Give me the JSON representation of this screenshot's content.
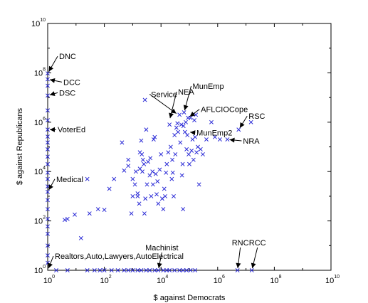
{
  "chart_data": {
    "type": "scatter",
    "title": "",
    "xlabel": "$ against Democrats",
    "ylabel": "$ against Republicans",
    "xscale": "log",
    "yscale": "log",
    "xlim": [
      1,
      10000000000
    ],
    "ylim": [
      1,
      10000000000
    ],
    "grid": false,
    "marker": "x",
    "marker_color": "#2b2bd6",
    "x_tick_labels": [
      {
        "base": "10",
        "exp": "0"
      },
      {
        "base": "10",
        "exp": "2"
      },
      {
        "base": "10",
        "exp": "4"
      },
      {
        "base": "10",
        "exp": "6"
      },
      {
        "base": "10",
        "exp": "8"
      },
      {
        "base": "10",
        "exp": "10"
      }
    ],
    "y_tick_labels": [
      {
        "base": "10",
        "exp": "0"
      },
      {
        "base": "10",
        "exp": "2"
      },
      {
        "base": "10",
        "exp": "4"
      },
      {
        "base": "10",
        "exp": "6"
      },
      {
        "base": "10",
        "exp": "8"
      },
      {
        "base": "10",
        "exp": "10"
      }
    ],
    "points": [
      [
        1,
        95000000
      ],
      [
        1,
        55000000
      ],
      [
        1,
        30000000
      ],
      [
        1,
        12000000
      ],
      [
        1,
        3000000
      ],
      [
        1,
        1200000
      ],
      [
        1,
        500000
      ],
      [
        1,
        260000
      ],
      [
        1,
        150000
      ],
      [
        1,
        80000
      ],
      [
        1,
        40000
      ],
      [
        1,
        20000
      ],
      [
        1,
        9000
      ],
      [
        1,
        5000
      ],
      [
        1,
        2500
      ],
      [
        1,
        1500
      ],
      [
        1,
        700
      ],
      [
        1,
        300
      ],
      [
        1,
        120
      ],
      [
        1,
        60
      ],
      [
        1,
        30
      ],
      [
        1,
        10
      ],
      [
        1,
        4
      ],
      [
        1,
        2
      ],
      [
        2,
        1
      ],
      [
        5,
        1
      ],
      [
        25,
        1
      ],
      [
        45,
        1
      ],
      [
        70,
        1
      ],
      [
        100,
        1
      ],
      [
        180,
        1
      ],
      [
        300,
        1
      ],
      [
        500,
        1
      ],
      [
        700,
        1
      ],
      [
        1000,
        1
      ],
      [
        1500,
        1
      ],
      [
        2000,
        1
      ],
      [
        3000,
        1
      ],
      [
        4000,
        1
      ],
      [
        6000,
        1
      ],
      [
        8000,
        1
      ],
      [
        12000,
        1
      ],
      [
        16000,
        1
      ],
      [
        20000,
        1
      ],
      [
        30000,
        1
      ],
      [
        45000,
        1
      ],
      [
        60000,
        1
      ],
      [
        80000,
        1
      ],
      [
        110000,
        1
      ],
      [
        160000,
        1
      ],
      [
        5000000,
        1
      ],
      [
        16000000,
        1
      ],
      [
        4,
        110
      ],
      [
        5,
        120
      ],
      [
        9,
        180
      ],
      [
        15,
        20
      ],
      [
        25,
        5000
      ],
      [
        30,
        200
      ],
      [
        60,
        300
      ],
      [
        100,
        280
      ],
      [
        150,
        2000
      ],
      [
        220,
        5000
      ],
      [
        420,
        150000
      ],
      [
        500,
        11000
      ],
      [
        700,
        17000
      ],
      [
        700,
        30000
      ],
      [
        900,
        200
      ],
      [
        1000,
        5000
      ],
      [
        1000,
        1000
      ],
      [
        1200,
        3000
      ],
      [
        1300,
        10000
      ],
      [
        1500,
        1000
      ],
      [
        1500,
        1300
      ],
      [
        1700,
        500
      ],
      [
        1800,
        13000
      ],
      [
        1800,
        60000
      ],
      [
        2000,
        180000
      ],
      [
        2100,
        50000
      ],
      [
        2200,
        10000
      ],
      [
        2300,
        30000
      ],
      [
        2500,
        20000
      ],
      [
        2600,
        200
      ],
      [
        2700,
        8000000
      ],
      [
        2800,
        800
      ],
      [
        3000,
        500000
      ],
      [
        3200,
        3000
      ],
      [
        3500,
        25000
      ],
      [
        4000,
        7000
      ],
      [
        4200,
        35000
      ],
      [
        4500,
        1000
      ],
      [
        5000,
        10000
      ],
      [
        5200,
        3000
      ],
      [
        5500,
        200000
      ],
      [
        6000,
        250000
      ],
      [
        6500,
        8000
      ],
      [
        7000,
        1200
      ],
      [
        7500,
        4000
      ],
      [
        8000,
        500
      ],
      [
        9000,
        12000
      ],
      [
        10000,
        50000
      ],
      [
        11000,
        800
      ],
      [
        12000,
        300
      ],
      [
        13000,
        2000
      ],
      [
        14000,
        1000
      ],
      [
        15000,
        9000
      ],
      [
        16000,
        20000
      ],
      [
        18000,
        60000
      ],
      [
        20000,
        800000
      ],
      [
        22000,
        100000
      ],
      [
        24000,
        5000
      ],
      [
        25000,
        30000
      ],
      [
        26000,
        9000
      ],
      [
        28000,
        1000
      ],
      [
        30000,
        300000
      ],
      [
        32000,
        50000
      ],
      [
        35000,
        600000
      ],
      [
        38000,
        900000
      ],
      [
        40000,
        400000
      ],
      [
        45000,
        2000000
      ],
      [
        48000,
        150000
      ],
      [
        52000,
        800000
      ],
      [
        55000,
        7000
      ],
      [
        58000,
        20000
      ],
      [
        60000,
        300
      ],
      [
        62000,
        700000
      ],
      [
        65000,
        2500000
      ],
      [
        70000,
        400000
      ],
      [
        75000,
        1000000
      ],
      [
        80000,
        80000
      ],
      [
        85000,
        300000
      ],
      [
        90000,
        1500000
      ],
      [
        95000,
        50000
      ],
      [
        100000,
        20000
      ],
      [
        110000,
        1500000
      ],
      [
        120000,
        70000
      ],
      [
        130000,
        200000
      ],
      [
        140000,
        30000
      ],
      [
        150000,
        1200000
      ],
      [
        160000,
        250000
      ],
      [
        170000,
        2000000
      ],
      [
        180000,
        60000
      ],
      [
        200000,
        100000
      ],
      [
        220000,
        3000
      ],
      [
        250000,
        80000
      ],
      [
        300000,
        50000
      ],
      [
        400000,
        200000
      ],
      [
        600000,
        1000000
      ],
      [
        800000,
        250000
      ],
      [
        1200000,
        200000
      ],
      [
        2200000,
        200000
      ],
      [
        5500000,
        500000
      ],
      [
        15000000,
        1000000
      ]
    ],
    "annotations": [
      {
        "text": "DNC",
        "x": 1,
        "y": 95000000
      },
      {
        "text": "DCC",
        "x": 1,
        "y": 55000000
      },
      {
        "text": "DSC",
        "x": 1,
        "y": 12000000
      },
      {
        "text": "VoterEd",
        "x": 1,
        "y": 500000
      },
      {
        "text": "Medical",
        "x": 1,
        "y": 1500
      },
      {
        "text": "Realtors,Auto,Lawyers,AutoElectrical",
        "x": 1,
        "y": 1
      },
      {
        "text": "Machinist",
        "x": 8000,
        "y": 1
      },
      {
        "text": "NEA",
        "x": 20000,
        "y": 1200000
      },
      {
        "text": "Service",
        "x": 40000,
        "y": 2000000
      },
      {
        "text": "MunEmp",
        "x": 65000,
        "y": 2500000
      },
      {
        "text": "AFLCIOCope",
        "x": 90000,
        "y": 1500000
      },
      {
        "text": "MunEmp2",
        "x": 90000,
        "y": 400000
      },
      {
        "text": "RSC",
        "x": 5500000,
        "y": 500000
      },
      {
        "text": "NRA",
        "x": 2200000,
        "y": 200000
      },
      {
        "text": "RNC",
        "x": 5000000,
        "y": 1
      },
      {
        "text": "RCC",
        "x": 16000000,
        "y": 1
      }
    ]
  }
}
